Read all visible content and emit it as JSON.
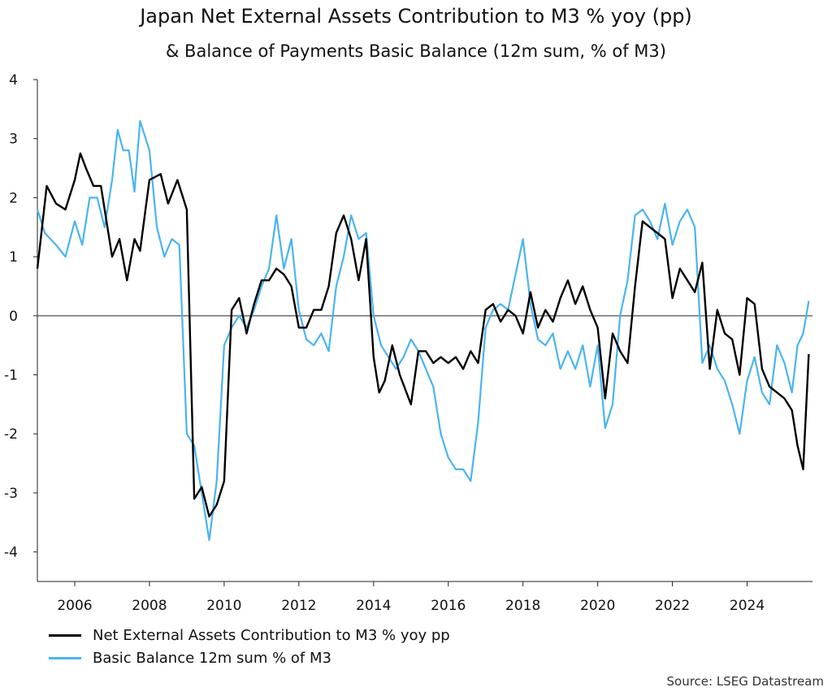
{
  "chart_data": {
    "type": "line",
    "title": "Japan Net External Assets Contribution to M3 % yoy (pp)",
    "subtitle": "& Balance of Payments Basic Balance (12m sum, % of M3)",
    "xlabel": "",
    "ylabel": "",
    "xlim": [
      2005.0,
      2025.75
    ],
    "ylim": [
      -4.5,
      4
    ],
    "yticks": [
      4,
      3,
      2,
      1,
      0,
      -1,
      -2,
      -3,
      -4
    ],
    "xticks": [
      2006,
      2008,
      2010,
      2012,
      2014,
      2016,
      2018,
      2020,
      2022,
      2024
    ],
    "zero_line": true,
    "grid": false,
    "legend_position": "bottom-left",
    "source": "Source: LSEG Datastream",
    "series": [
      {
        "name": "Net External Assets Contribution to M3 % yoy pp",
        "color": "#000000",
        "x": [
          2005.0,
          2005.25,
          2005.5,
          2005.75,
          2006.0,
          2006.15,
          2006.3,
          2006.5,
          2006.7,
          2007.0,
          2007.2,
          2007.4,
          2007.6,
          2007.75,
          2008.0,
          2008.3,
          2008.5,
          2008.75,
          2009.0,
          2009.2,
          2009.4,
          2009.6,
          2009.8,
          2010.0,
          2010.2,
          2010.4,
          2010.6,
          2010.8,
          2011.0,
          2011.2,
          2011.4,
          2011.6,
          2011.8,
          2012.0,
          2012.2,
          2012.4,
          2012.6,
          2012.8,
          2013.0,
          2013.2,
          2013.4,
          2013.6,
          2013.8,
          2014.0,
          2014.15,
          2014.3,
          2014.5,
          2014.7,
          2015.0,
          2015.2,
          2015.4,
          2015.6,
          2015.8,
          2016.0,
          2016.2,
          2016.4,
          2016.6,
          2016.8,
          2017.0,
          2017.2,
          2017.4,
          2017.6,
          2017.8,
          2018.0,
          2018.2,
          2018.4,
          2018.6,
          2018.8,
          2019.0,
          2019.2,
          2019.4,
          2019.6,
          2019.8,
          2020.0,
          2020.2,
          2020.4,
          2020.6,
          2020.8,
          2021.0,
          2021.2,
          2021.4,
          2021.6,
          2021.8,
          2022.0,
          2022.2,
          2022.4,
          2022.6,
          2022.8,
          2023.0,
          2023.2,
          2023.4,
          2023.6,
          2023.8,
          2024.0,
          2024.2,
          2024.4,
          2024.6,
          2024.8,
          2025.0,
          2025.2,
          2025.35,
          2025.5,
          2025.65
        ],
        "y": [
          0.8,
          2.2,
          1.9,
          1.8,
          2.3,
          2.75,
          2.5,
          2.2,
          2.2,
          1.0,
          1.3,
          0.6,
          1.3,
          1.1,
          2.3,
          2.4,
          1.9,
          2.3,
          1.8,
          -3.1,
          -2.9,
          -3.4,
          -3.2,
          -2.8,
          0.1,
          0.3,
          -0.3,
          0.2,
          0.6,
          0.6,
          0.8,
          0.7,
          0.5,
          -0.2,
          -0.2,
          0.1,
          0.1,
          0.5,
          1.4,
          1.7,
          1.3,
          0.6,
          1.3,
          -0.7,
          -1.3,
          -1.1,
          -0.5,
          -1.0,
          -1.5,
          -0.6,
          -0.6,
          -0.8,
          -0.7,
          -0.8,
          -0.7,
          -0.9,
          -0.6,
          -0.8,
          0.1,
          0.2,
          -0.1,
          0.1,
          0.0,
          -0.3,
          0.4,
          -0.2,
          0.1,
          -0.1,
          0.3,
          0.6,
          0.2,
          0.5,
          0.1,
          -0.2,
          -1.4,
          -0.3,
          -0.6,
          -0.8,
          0.5,
          1.6,
          1.5,
          1.4,
          1.3,
          0.3,
          0.8,
          0.6,
          0.4,
          0.9,
          -0.9,
          0.1,
          -0.3,
          -0.4,
          -1.0,
          0.3,
          0.2,
          -0.9,
          -1.2,
          -1.3,
          -1.4,
          -1.6,
          -2.2,
          -2.6,
          -0.65
        ]
      },
      {
        "name": "Basic Balance 12m sum % of M3",
        "color": "#4ab4f0",
        "x": [
          2005.0,
          2005.2,
          2005.5,
          2005.75,
          2006.0,
          2006.2,
          2006.4,
          2006.6,
          2006.8,
          2007.0,
          2007.15,
          2007.3,
          2007.45,
          2007.6,
          2007.75,
          2008.0,
          2008.2,
          2008.4,
          2008.6,
          2008.8,
          2009.0,
          2009.2,
          2009.4,
          2009.6,
          2009.8,
          2010.0,
          2010.2,
          2010.4,
          2010.6,
          2010.8,
          2011.0,
          2011.2,
          2011.4,
          2011.6,
          2011.8,
          2012.0,
          2012.2,
          2012.4,
          2012.6,
          2012.8,
          2013.0,
          2013.2,
          2013.4,
          2013.6,
          2013.8,
          2014.0,
          2014.2,
          2014.4,
          2014.6,
          2014.8,
          2015.0,
          2015.2,
          2015.4,
          2015.6,
          2015.8,
          2016.0,
          2016.2,
          2016.4,
          2016.6,
          2016.8,
          2017.0,
          2017.2,
          2017.4,
          2017.6,
          2017.8,
          2018.0,
          2018.2,
          2018.4,
          2018.6,
          2018.8,
          2019.0,
          2019.2,
          2019.4,
          2019.6,
          2019.8,
          2020.0,
          2020.2,
          2020.4,
          2020.6,
          2020.8,
          2021.0,
          2021.2,
          2021.4,
          2021.6,
          2021.8,
          2022.0,
          2022.2,
          2022.4,
          2022.6,
          2022.8,
          2023.0,
          2023.2,
          2023.4,
          2023.6,
          2023.8,
          2024.0,
          2024.2,
          2024.4,
          2024.6,
          2024.8,
          2025.0,
          2025.2,
          2025.35,
          2025.5,
          2025.65
        ],
        "y": [
          1.8,
          1.4,
          1.2,
          1.0,
          1.6,
          1.2,
          2.0,
          2.0,
          1.5,
          2.3,
          3.15,
          2.8,
          2.8,
          2.1,
          3.3,
          2.8,
          1.5,
          1.0,
          1.3,
          1.2,
          -2.0,
          -2.2,
          -3.0,
          -3.8,
          -2.8,
          -0.5,
          -0.2,
          0.0,
          -0.2,
          0.1,
          0.5,
          0.8,
          1.7,
          0.8,
          1.3,
          0.1,
          -0.4,
          -0.5,
          -0.3,
          -0.6,
          0.5,
          1.0,
          1.7,
          1.3,
          1.4,
          0.0,
          -0.5,
          -0.7,
          -0.9,
          -0.7,
          -0.4,
          -0.6,
          -0.9,
          -1.2,
          -2.0,
          -2.4,
          -2.6,
          -2.6,
          -2.8,
          -1.8,
          -0.2,
          0.1,
          0.2,
          0.1,
          0.7,
          1.3,
          0.2,
          -0.4,
          -0.5,
          -0.3,
          -0.9,
          -0.6,
          -0.9,
          -0.5,
          -1.2,
          -0.5,
          -1.9,
          -1.5,
          0.0,
          0.6,
          1.7,
          1.8,
          1.6,
          1.3,
          1.9,
          1.2,
          1.6,
          1.8,
          1.5,
          -0.8,
          -0.5,
          -0.9,
          -1.1,
          -1.5,
          -2.0,
          -1.1,
          -0.7,
          -1.3,
          -1.5,
          -0.5,
          -0.8,
          -1.3,
          -0.5,
          -0.3,
          0.25
        ]
      }
    ]
  }
}
